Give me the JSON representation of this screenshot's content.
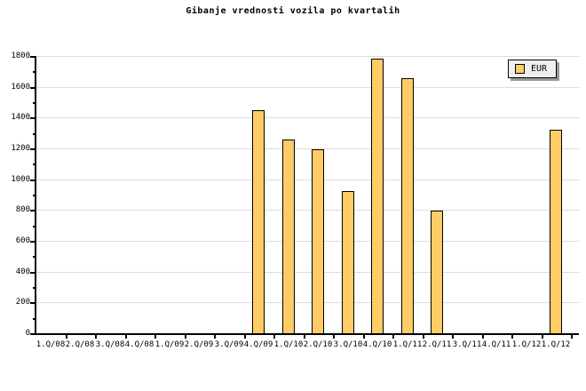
{
  "title": "Gibanje vrednosti vozila po kvartalih",
  "legend": {
    "label": "EUR",
    "swatch_color": "#FFCC66",
    "position": "top-right"
  },
  "colors": {
    "background": "#FFFFFF",
    "bar_fill": "#FFCC66",
    "bar_border": "#000000",
    "grid": "#DCDCDC",
    "axis": "#000000",
    "text": "#000000",
    "legend_bg": "#EFEFEF",
    "legend_shadow": "#999999"
  },
  "chart_data": {
    "type": "bar",
    "title": "Gibanje vrednosti vozila po kvartalih",
    "xlabel": "",
    "ylabel": "",
    "categories": [
      "1.Q/08",
      "2.Q/08",
      "3.Q/08",
      "4.Q/08",
      "1.Q/09",
      "2.Q/09",
      "3.Q/09",
      "4.Q/09",
      "1.Q/10",
      "2.Q/10",
      "3.Q/10",
      "4.Q/10",
      "1.Q/11",
      "2.Q/11",
      "3.Q/11",
      "4.Q/11",
      "1.Q/12",
      "1.Q/12"
    ],
    "series": [
      {
        "name": "EUR",
        "values": [
          null,
          null,
          null,
          null,
          null,
          null,
          null,
          1450,
          1260,
          1195,
          925,
          1785,
          1655,
          795,
          null,
          null,
          null,
          1320
        ]
      }
    ],
    "ylim": [
      0,
      1800
    ],
    "y_ticks": [
      0,
      200,
      400,
      600,
      800,
      1000,
      1200,
      1400,
      1600,
      1800
    ],
    "y_minor_step": 100,
    "grid": "horizontal",
    "legend_position": "top-right"
  }
}
